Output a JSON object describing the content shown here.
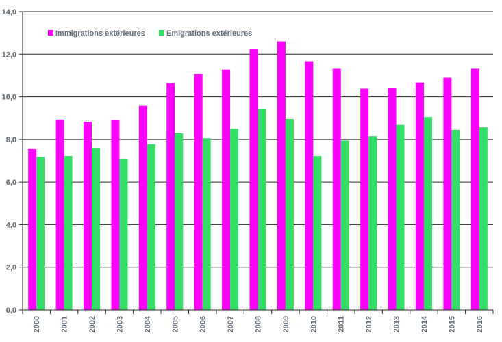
{
  "chart_data": {
    "type": "bar",
    "title": "",
    "xlabel": "",
    "ylabel": "",
    "categories": [
      "2000",
      "2001",
      "2002",
      "2003",
      "2004",
      "2005",
      "2006",
      "2007",
      "2008",
      "2009",
      "2010",
      "2011",
      "2012",
      "2013",
      "2014",
      "2015",
      "2016"
    ],
    "series": [
      {
        "name": "Immigrations extérieures",
        "color": "#ff00ff",
        "values": [
          7.55,
          8.93,
          8.82,
          8.9,
          9.58,
          10.64,
          11.08,
          11.28,
          12.23,
          12.6,
          11.67,
          11.32,
          10.39,
          10.43,
          10.67,
          10.9,
          11.32
        ]
      },
      {
        "name": "Emigrations extérieures",
        "color": "#33dd66",
        "values": [
          7.18,
          7.22,
          7.6,
          7.1,
          7.78,
          8.29,
          8.05,
          8.5,
          9.42,
          8.96,
          7.22,
          7.95,
          8.15,
          8.68,
          9.05,
          8.45,
          8.57
        ]
      }
    ],
    "ylim": [
      0,
      14
    ],
    "yticks": [
      0,
      2,
      4,
      6,
      8,
      10,
      12,
      14
    ],
    "ytick_labels": [
      "0,0",
      "2,0",
      "4,0",
      "6,0",
      "8,0",
      "10,0",
      "12,0",
      "14,0"
    ],
    "grid": true,
    "legend_position": "top-left"
  }
}
